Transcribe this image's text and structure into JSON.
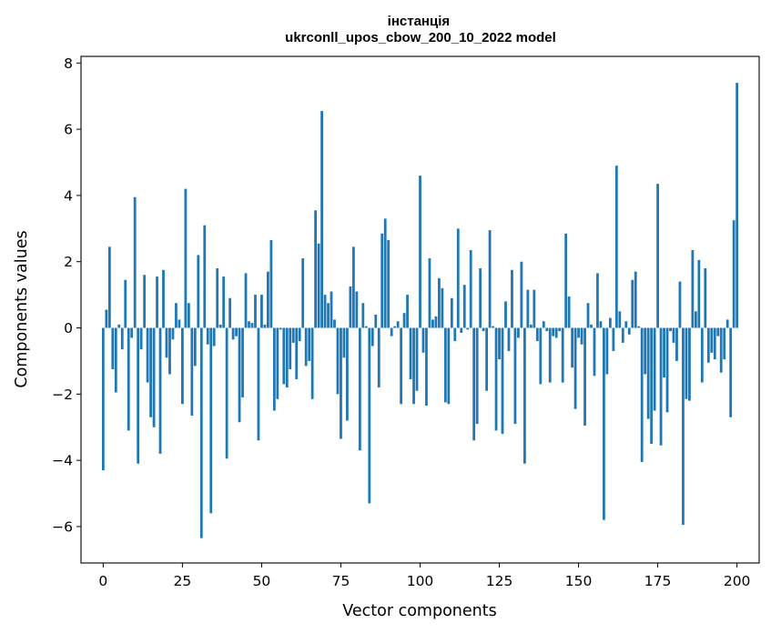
{
  "chart_data": {
    "type": "bar",
    "title": "інстанція\nukrconll_upos_cbow_200_10_2022 model",
    "xlabel": "Vector components",
    "ylabel": "Components values",
    "xlim": [
      -7,
      207
    ],
    "ylim": [
      -7.1,
      8.2
    ],
    "xticks": [
      0,
      25,
      50,
      75,
      100,
      125,
      150,
      175,
      200
    ],
    "yticks": [
      -6,
      -4,
      -2,
      0,
      2,
      4,
      6,
      8
    ],
    "bar_color": "#1f77b4",
    "grid": false,
    "values": [
      -4.3,
      0.55,
      2.45,
      -1.25,
      -1.95,
      0.1,
      -0.65,
      1.45,
      -3.1,
      -0.3,
      3.95,
      -4.1,
      -0.65,
      1.6,
      -1.65,
      -2.7,
      -3.0,
      1.55,
      -3.8,
      1.75,
      -0.9,
      -1.4,
      -0.35,
      0.75,
      0.25,
      -2.3,
      4.2,
      0.75,
      -2.65,
      -1.15,
      2.2,
      -6.35,
      3.1,
      -0.5,
      -5.6,
      -0.55,
      1.8,
      0.1,
      1.55,
      -3.95,
      0.9,
      -0.35,
      -0.25,
      -2.85,
      -2.1,
      1.65,
      0.2,
      0.15,
      1.0,
      -3.4,
      1.0,
      0.1,
      1.7,
      2.65,
      -2.5,
      -2.15,
      -0.05,
      -1.7,
      -1.8,
      -1.25,
      -0.45,
      -1.55,
      -0.4,
      2.1,
      -1.15,
      -1.0,
      -2.15,
      3.55,
      2.55,
      6.55,
      1.0,
      0.75,
      1.1,
      0.25,
      -2.0,
      -3.35,
      -0.9,
      -2.8,
      1.25,
      2.45,
      1.1,
      -3.7,
      0.75,
      0.05,
      -5.3,
      -0.55,
      0.4,
      -1.8,
      2.85,
      3.3,
      2.65,
      -0.25,
      0.05,
      0.2,
      -2.3,
      0.45,
      1.0,
      -1.55,
      -2.3,
      -1.9,
      4.6,
      -0.75,
      -2.35,
      2.1,
      0.25,
      0.35,
      1.5,
      1.2,
      -2.25,
      -2.3,
      0.9,
      -0.4,
      3.0,
      -0.15,
      1.3,
      -0.05,
      2.35,
      -3.4,
      -2.9,
      1.8,
      -0.1,
      -1.9,
      2.95,
      0.05,
      -3.1,
      -0.95,
      -3.2,
      0.8,
      -0.7,
      1.75,
      -2.9,
      -0.3,
      2.0,
      -4.1,
      1.15,
      0.1,
      1.15,
      -0.4,
      -1.7,
      0.2,
      -0.1,
      -1.65,
      -0.25,
      -0.3,
      -0.1,
      -1.65,
      2.85,
      0.95,
      -1.2,
      -2.45,
      -0.3,
      -0.5,
      -2.95,
      0.75,
      0.1,
      -1.45,
      1.65,
      0.2,
      -5.8,
      -1.4,
      0.3,
      -0.7,
      4.9,
      0.5,
      -0.45,
      0.2,
      -0.2,
      1.45,
      1.7,
      0.05,
      -4.05,
      -1.4,
      -2.75,
      -3.5,
      -2.5,
      4.35,
      -3.55,
      -1.5,
      -2.55,
      -0.1,
      -0.45,
      -1.0,
      1.4,
      -5.95,
      -2.15,
      -2.2,
      2.35,
      0.5,
      2.05,
      -1.65,
      1.8,
      -1.05,
      -0.75,
      -0.95,
      -0.25,
      -1.35,
      -0.95,
      0.25,
      -2.7,
      3.25,
      7.4
    ]
  }
}
